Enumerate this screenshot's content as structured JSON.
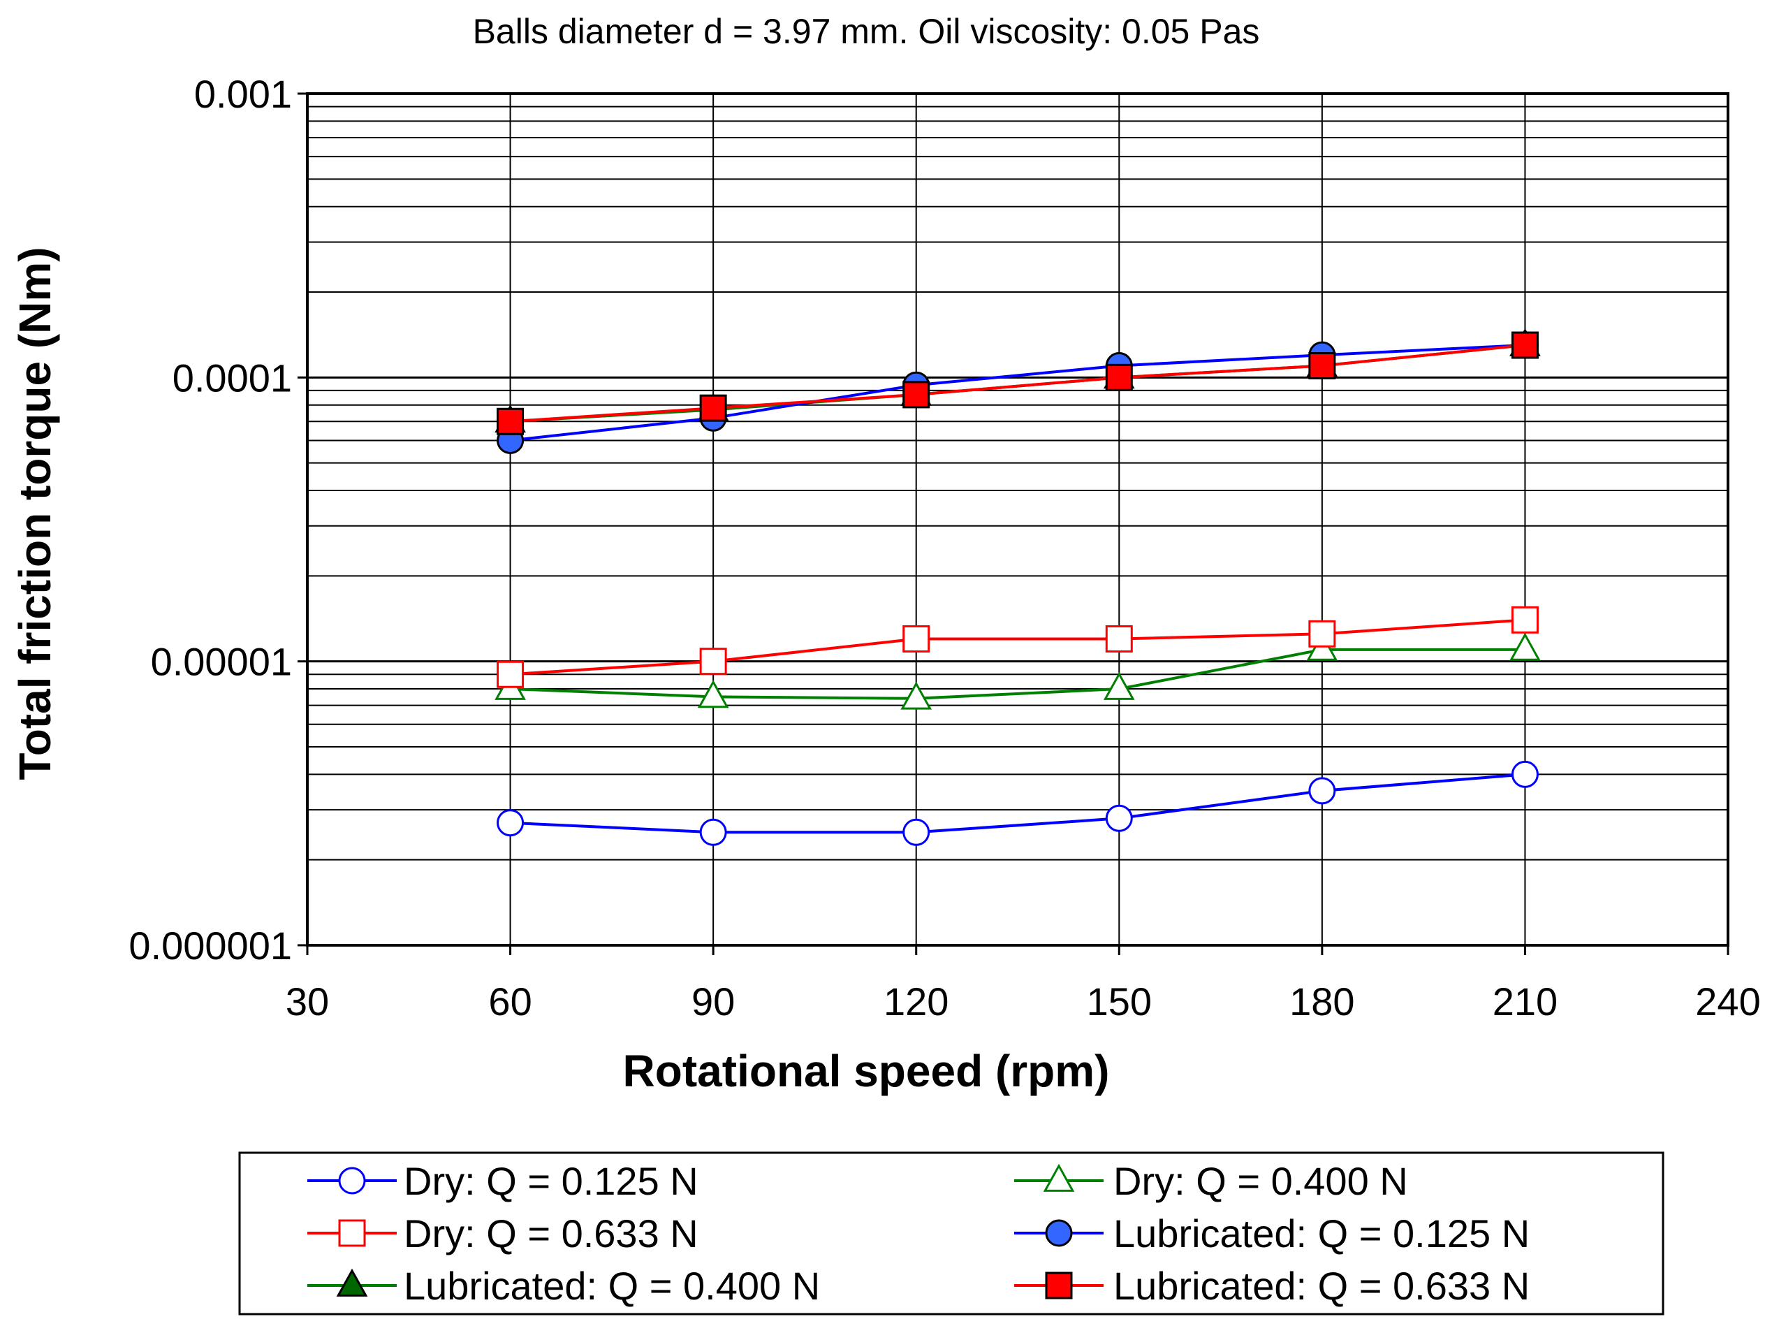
{
  "chart_data": {
    "type": "line",
    "title": "Balls diameter d = 3.97 mm.  Oil viscosity: 0.05 Pas",
    "xlabel": "Rotational speed (rpm)",
    "ylabel": "Total friction torque (Nm)",
    "xlim": [
      30,
      240
    ],
    "ylim": [
      1e-06,
      0.001
    ],
    "yscale": "log",
    "grid": true,
    "legend_position": "bottom",
    "x_ticks": [
      "30",
      "60",
      "90",
      "120",
      "150",
      "180",
      "210",
      "240"
    ],
    "y_ticks": [
      "0.001",
      "0.0001",
      "0.00001",
      "0.000001"
    ],
    "x": [
      60,
      90,
      120,
      150,
      180,
      210
    ],
    "series": [
      {
        "name": "Dry: Q = 0.125 N",
        "color": "#0000ff",
        "marker": "circle",
        "filled": false,
        "values": [
          2.7e-06,
          2.5e-06,
          2.5e-06,
          2.8e-06,
          3.5e-06,
          4e-06
        ]
      },
      {
        "name": "Dry: Q = 0.400 N",
        "color": "#008000",
        "marker": "triangle",
        "filled": false,
        "values": [
          8e-06,
          7.5e-06,
          7.4e-06,
          8e-06,
          1.1e-05,
          1.1e-05
        ]
      },
      {
        "name": "Dry: Q = 0.633 N",
        "color": "#ff0000",
        "marker": "square",
        "filled": false,
        "values": [
          9e-06,
          1e-05,
          1.2e-05,
          1.2e-05,
          1.25e-05,
          1.4e-05
        ]
      },
      {
        "name": "Lubricated: Q = 0.125 N",
        "color": "#0000ff",
        "marker": "circle",
        "filled": true,
        "fill": "#3366ff",
        "values": [
          6e-05,
          7.2e-05,
          9.4e-05,
          0.00011,
          0.00012,
          0.00013
        ]
      },
      {
        "name": "Lubricated: Q = 0.400 N",
        "color": "#008000",
        "marker": "triangle",
        "filled": true,
        "fill": "#006600",
        "values": [
          7e-05,
          7.7e-05,
          8.7e-05,
          0.0001,
          0.00011,
          0.00013
        ]
      },
      {
        "name": "Lubricated: Q = 0.633 N",
        "color": "#ff0000",
        "marker": "square",
        "filled": true,
        "fill": "#ff0000",
        "values": [
          7e-05,
          7.8e-05,
          8.7e-05,
          0.0001,
          0.00011,
          0.00013
        ]
      }
    ],
    "legend_order": [
      0,
      1,
      2,
      3,
      4,
      5
    ]
  }
}
